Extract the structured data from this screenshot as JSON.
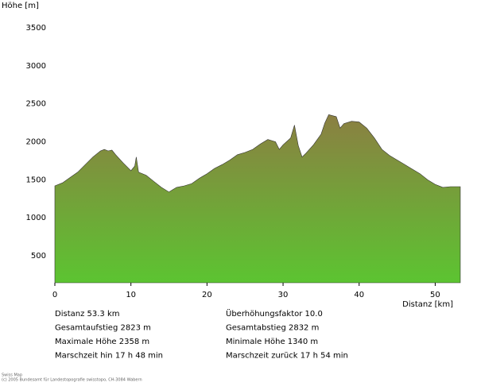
{
  "chart_data": {
    "type": "area",
    "y_label": "Höhe [m]",
    "x_label": "Distanz [km]",
    "x": [
      0,
      1,
      2,
      3,
      4,
      5,
      6,
      6.5,
      7,
      7.5,
      8,
      9,
      10,
      10.5,
      10.7,
      11,
      12,
      13,
      14,
      15,
      15.5,
      16,
      17,
      18,
      19,
      20,
      21,
      22,
      23,
      24,
      25,
      26,
      27,
      28,
      29,
      29.5,
      30,
      31,
      31.5,
      32,
      32.5,
      33,
      34,
      35,
      35.5,
      36,
      37,
      37.5,
      38,
      39,
      40,
      41,
      42,
      43,
      44,
      45,
      46,
      47,
      48,
      49,
      50,
      51,
      52,
      53.3
    ],
    "values": [
      1420,
      1460,
      1530,
      1600,
      1700,
      1800,
      1880,
      1900,
      1880,
      1890,
      1830,
      1720,
      1620,
      1680,
      1800,
      1600,
      1560,
      1480,
      1400,
      1340,
      1370,
      1400,
      1420,
      1450,
      1520,
      1580,
      1650,
      1700,
      1760,
      1830,
      1860,
      1900,
      1970,
      2030,
      2000,
      1900,
      1960,
      2050,
      2220,
      1950,
      1800,
      1850,
      1960,
      2100,
      2250,
      2358,
      2330,
      2180,
      2240,
      2270,
      2260,
      2180,
      2050,
      1900,
      1820,
      1760,
      1700,
      1640,
      1580,
      1500,
      1440,
      1400,
      1410,
      1410
    ],
    "color_top": "#8b7f42",
    "color_bottom": "#5cc431",
    "xlim": [
      0,
      53.3
    ],
    "ylim": [
      145,
      3500
    ],
    "xticks": [
      0,
      10,
      20,
      30,
      40,
      50
    ],
    "yticks": [
      500,
      1000,
      1500,
      2000,
      2500,
      3000,
      3500
    ],
    "annotations": [
      "Distanz  53.3 km",
      "Überhöhungsfaktor  10.0",
      "Gesamtaufstieg  2823 m",
      "Gesamtabstieg  2832 m",
      "Maximale Höhe  2358 m",
      "Minimale Höhe  1340 m",
      "Marschzeit hin  17 h 48 min",
      "Marschzeit zurück  17 h 54 min"
    ],
    "footer": [
      "Swiss Map",
      "(c) 2005 Bundesamt für Landestopografie swisstopo, CH-3084 Wabern"
    ]
  }
}
